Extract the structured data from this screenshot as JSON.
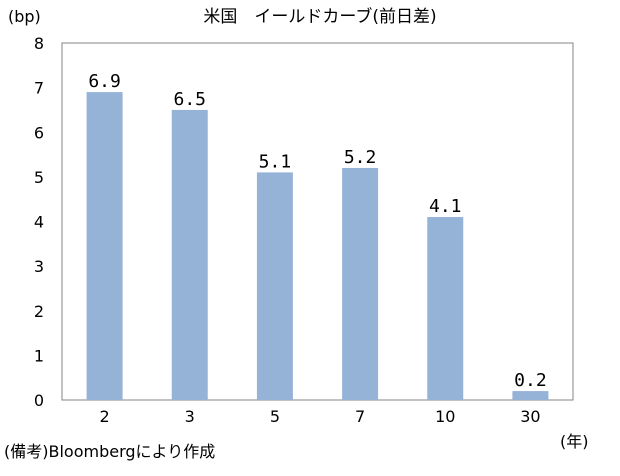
{
  "chart_data": {
    "type": "bar",
    "title": "米国　イールドカーブ(前日差)",
    "unit_label": "(bp)",
    "x_unit_label": "(年)",
    "source": "(備考)Bloombergにより作成",
    "categories": [
      "2",
      "3",
      "5",
      "7",
      "10",
      "30"
    ],
    "series": [
      {
        "values": [
          6.9,
          6.5,
          5.1,
          5.2,
          4.1,
          0.2
        ]
      }
    ],
    "data_labels": [
      "6.9",
      "6.5",
      "5.1",
      "5.2",
      "4.1",
      "0.2"
    ],
    "ylim": [
      0,
      8
    ],
    "yticks": [
      "0",
      "1",
      "2",
      "3",
      "4",
      "5",
      "6",
      "7",
      "8"
    ],
    "bar_color": "#95b3d7",
    "grid": false,
    "legend": "none"
  }
}
